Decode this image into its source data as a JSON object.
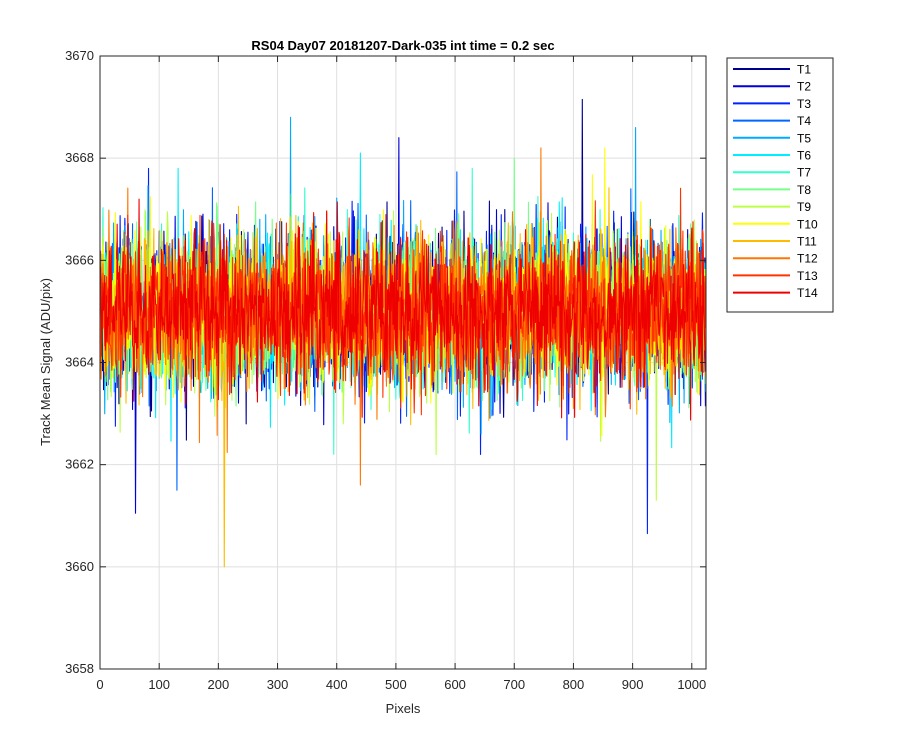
{
  "chart_data": {
    "type": "line",
    "title": "RS04 Day07 20181207-Dark-035 int time = 0.2 sec",
    "xlabel": "Pixels",
    "ylabel": "Track Mean Signal (ADU/pix)",
    "xlim": [
      0,
      1024
    ],
    "ylim": [
      3658,
      3670
    ],
    "xticks": [
      0,
      100,
      200,
      300,
      400,
      500,
      600,
      700,
      800,
      900,
      1000
    ],
    "yticks": [
      3658,
      3660,
      3662,
      3664,
      3666,
      3668,
      3670
    ],
    "grid": true,
    "legend_position": "outside-top-right",
    "noise": {
      "center": 3665.0,
      "spread": 1.0,
      "num_points": 1024
    },
    "series": [
      {
        "name": "T1",
        "color": "#00008f",
        "spikes": [
          [
            815,
            3669.15
          ]
        ]
      },
      {
        "name": "T2",
        "color": "#0000d8",
        "spikes": [
          [
            60,
            3661.05
          ],
          [
            505,
            3668.4
          ]
        ]
      },
      {
        "name": "T3",
        "color": "#0022ff",
        "spikes": [
          [
            925,
            3660.65
          ]
        ]
      },
      {
        "name": "T4",
        "color": "#0066ff",
        "spikes": [
          [
            130,
            3661.5
          ]
        ]
      },
      {
        "name": "T5",
        "color": "#00aaff",
        "spikes": [
          [
            322,
            3668.8
          ],
          [
            905,
            3668.6
          ]
        ]
      },
      {
        "name": "T6",
        "color": "#00eeff",
        "spikes": [
          [
            440,
            3668.1
          ]
        ]
      },
      {
        "name": "T7",
        "color": "#33ffcc",
        "spikes": []
      },
      {
        "name": "T8",
        "color": "#77ff88",
        "spikes": [
          [
            700,
            3668.0
          ]
        ]
      },
      {
        "name": "T9",
        "color": "#bbff44",
        "spikes": [
          [
            940,
            3661.3
          ]
        ]
      },
      {
        "name": "T10",
        "color": "#ffff00",
        "spikes": [
          [
            853,
            3668.2
          ]
        ]
      },
      {
        "name": "T11",
        "color": "#ffbb00",
        "spikes": [
          [
            210,
            3660.0
          ]
        ]
      },
      {
        "name": "T12",
        "color": "#ff7700",
        "spikes": [
          [
            745,
            3668.2
          ],
          [
            440,
            3661.6
          ]
        ]
      },
      {
        "name": "T13",
        "color": "#ff3300",
        "spikes": []
      },
      {
        "name": "T14",
        "color": "#ee0000",
        "spikes": []
      }
    ]
  }
}
